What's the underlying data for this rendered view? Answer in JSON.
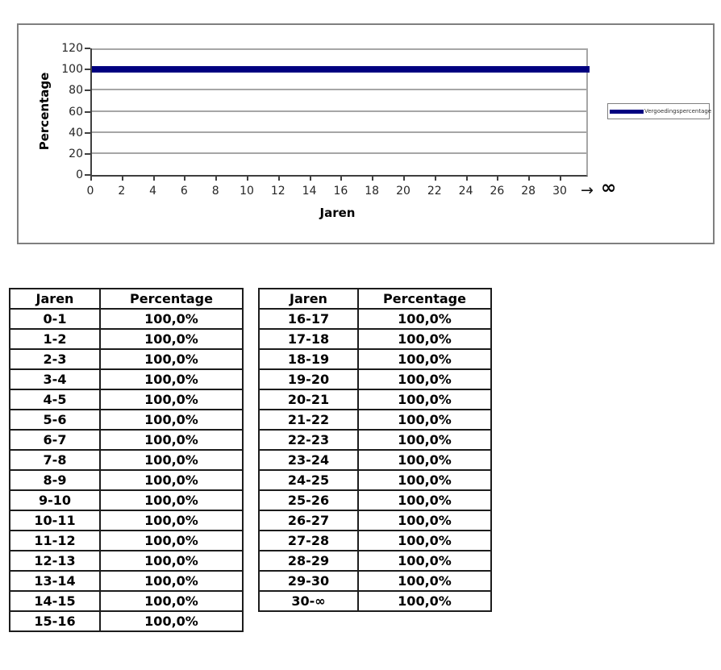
{
  "chart_data": {
    "type": "line",
    "title": "",
    "xlabel": "Jaren",
    "ylabel": "Percentage",
    "legend": [
      "Vergoedingspercentage"
    ],
    "legend_position": "right",
    "grid": true,
    "ylim": [
      0,
      120
    ],
    "y_ticks": [
      0,
      20,
      40,
      60,
      80,
      100,
      120
    ],
    "x_ticks": [
      0,
      2,
      4,
      6,
      8,
      10,
      12,
      14,
      16,
      18,
      20,
      22,
      24,
      26,
      28,
      30
    ],
    "x_axis_arrow": "→",
    "x_axis_infinity": "∞",
    "series": [
      {
        "name": "Vergoedingspercentage",
        "color": "#000080",
        "x": [
          0,
          30
        ],
        "values": [
          100,
          100
        ],
        "note": "Constant line at 100% from year 0 extending to infinity"
      }
    ]
  },
  "colors": {
    "line": "#000080",
    "grid": "#a6a6a6",
    "axis": "#3f3f3f",
    "panel_border": "#7f7f7f"
  },
  "tables": [
    {
      "headers": [
        "Jaren",
        "Percentage"
      ],
      "rows": [
        [
          "0-1",
          "100,0%"
        ],
        [
          "1-2",
          "100,0%"
        ],
        [
          "2-3",
          "100,0%"
        ],
        [
          "3-4",
          "100,0%"
        ],
        [
          "4-5",
          "100,0%"
        ],
        [
          "5-6",
          "100,0%"
        ],
        [
          "6-7",
          "100,0%"
        ],
        [
          "7-8",
          "100,0%"
        ],
        [
          "8-9",
          "100,0%"
        ],
        [
          "9-10",
          "100,0%"
        ],
        [
          "10-11",
          "100,0%"
        ],
        [
          "11-12",
          "100,0%"
        ],
        [
          "12-13",
          "100,0%"
        ],
        [
          "13-14",
          "100,0%"
        ],
        [
          "14-15",
          "100,0%"
        ],
        [
          "15-16",
          "100,0%"
        ]
      ]
    },
    {
      "headers": [
        "Jaren",
        "Percentage"
      ],
      "rows": [
        [
          "16-17",
          "100,0%"
        ],
        [
          "17-18",
          "100,0%"
        ],
        [
          "18-19",
          "100,0%"
        ],
        [
          "19-20",
          "100,0%"
        ],
        [
          "20-21",
          "100,0%"
        ],
        [
          "21-22",
          "100,0%"
        ],
        [
          "22-23",
          "100,0%"
        ],
        [
          "23-24",
          "100,0%"
        ],
        [
          "24-25",
          "100,0%"
        ],
        [
          "25-26",
          "100,0%"
        ],
        [
          "26-27",
          "100,0%"
        ],
        [
          "27-28",
          "100,0%"
        ],
        [
          "28-29",
          "100,0%"
        ],
        [
          "29-30",
          "100,0%"
        ],
        [
          "30-∞",
          "100,0%"
        ]
      ]
    }
  ]
}
